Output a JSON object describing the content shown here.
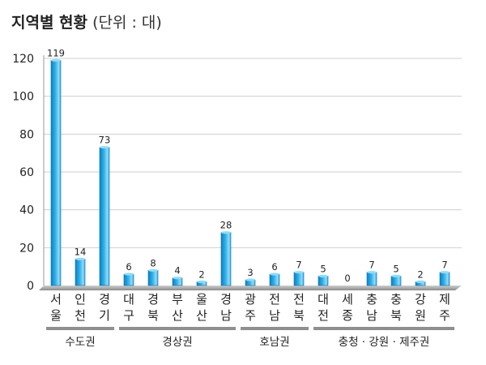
{
  "header": {
    "title": "지역별 현황",
    "unit": "(단위 : 대)"
  },
  "colors": {
    "bar_top": "#8fdcf8",
    "bar_mid": "#2fb2ea",
    "bar_bottom": "#0d7fc4",
    "grid": "#cfcfcf",
    "group_band": "#8f8f8f",
    "floor": "#b5b5b5"
  },
  "chart_data": {
    "type": "bar",
    "title": "지역별 현황",
    "unit": "(단위 : 대)",
    "ylim": [
      0,
      120
    ],
    "yticks": [
      0,
      20,
      40,
      60,
      80,
      100,
      120
    ],
    "grid": true,
    "categories": [
      [
        "서",
        "울"
      ],
      [
        "인",
        "천"
      ],
      [
        "경",
        "기"
      ],
      [
        "대",
        "구"
      ],
      [
        "경",
        "북"
      ],
      [
        "부",
        "산"
      ],
      [
        "울",
        "산"
      ],
      [
        "경",
        "남"
      ],
      [
        "광",
        "주"
      ],
      [
        "전",
        "남"
      ],
      [
        "전",
        "북"
      ],
      [
        "대",
        "전"
      ],
      [
        "세",
        "종"
      ],
      [
        "충",
        "남"
      ],
      [
        "충",
        "북"
      ],
      [
        "강",
        "원"
      ],
      [
        "제",
        "주"
      ]
    ],
    "values": [
      119,
      14,
      73,
      6,
      8,
      4,
      2,
      28,
      3,
      6,
      7,
      5,
      0,
      7,
      5,
      2,
      7
    ],
    "groups": [
      {
        "label": "수도권",
        "start": 0,
        "end": 2
      },
      {
        "label": "경상권",
        "start": 3,
        "end": 7
      },
      {
        "label": "호남권",
        "start": 8,
        "end": 10
      },
      {
        "label": "충청 · 강원 · 제주권",
        "start": 11,
        "end": 16
      }
    ]
  }
}
